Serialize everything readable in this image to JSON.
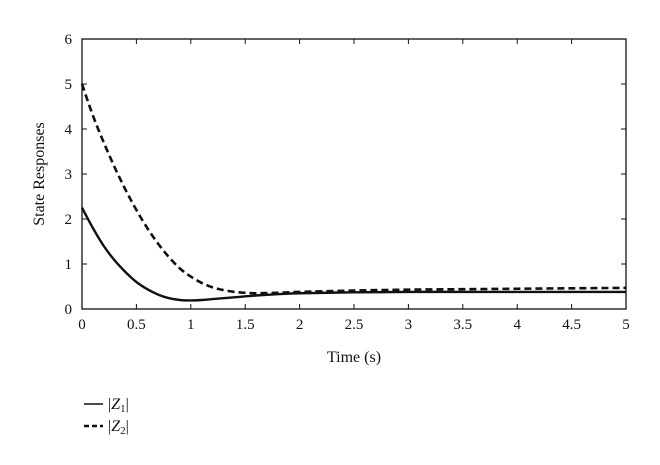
{
  "chart_data": {
    "type": "line",
    "title": "",
    "xlabel": "Time (s)",
    "ylabel": "State Responses",
    "xlim": [
      0,
      5
    ],
    "ylim": [
      0,
      6
    ],
    "xticks": [
      "0",
      "0.5",
      "1",
      "1.5",
      "2",
      "2.5",
      "3",
      "3.5",
      "4",
      "4.5",
      "5"
    ],
    "yticks": [
      "0",
      "1",
      "2",
      "3",
      "4",
      "5",
      "6"
    ],
    "grid": false,
    "legend_position": "bottom-left",
    "series": [
      {
        "name": "|Z1|",
        "style": "solid",
        "color": "#111111",
        "x": [
          0,
          0.1,
          0.2,
          0.3,
          0.4,
          0.5,
          0.6,
          0.7,
          0.8,
          0.9,
          1.0,
          1.1,
          1.2,
          1.4,
          1.6,
          1.8,
          2.0,
          2.5,
          3.0,
          3.5,
          4.0,
          4.5,
          5.0
        ],
        "y": [
          2.25,
          1.8,
          1.4,
          1.08,
          0.82,
          0.6,
          0.44,
          0.32,
          0.24,
          0.2,
          0.19,
          0.2,
          0.22,
          0.26,
          0.3,
          0.33,
          0.35,
          0.37,
          0.38,
          0.38,
          0.38,
          0.38,
          0.38
        ]
      },
      {
        "name": "|Z2|",
        "style": "dashed",
        "color": "#111111",
        "x": [
          0,
          0.1,
          0.2,
          0.3,
          0.4,
          0.5,
          0.6,
          0.7,
          0.8,
          0.9,
          1.0,
          1.1,
          1.2,
          1.3,
          1.4,
          1.5,
          1.6,
          1.8,
          2.0,
          2.5,
          3.0,
          3.5,
          4.0,
          4.5,
          5.0
        ],
        "y": [
          5.0,
          4.3,
          3.7,
          3.15,
          2.65,
          2.2,
          1.8,
          1.45,
          1.15,
          0.9,
          0.72,
          0.58,
          0.48,
          0.42,
          0.38,
          0.36,
          0.35,
          0.36,
          0.38,
          0.41,
          0.43,
          0.44,
          0.45,
          0.46,
          0.47
        ]
      }
    ]
  },
  "legend": {
    "items": [
      {
        "prefix": "|",
        "symbol": "Z",
        "subscript": "1",
        "suffix": "|"
      },
      {
        "prefix": "|",
        "symbol": "Z",
        "subscript": "2",
        "suffix": "|"
      }
    ]
  }
}
